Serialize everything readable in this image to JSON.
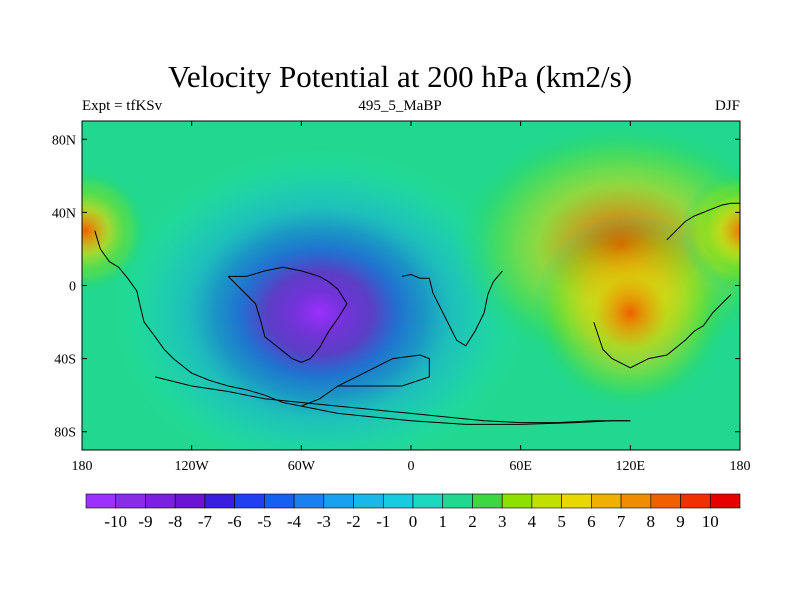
{
  "title": "Velocity Potential at 200 hPa (km2/s)",
  "subtitle_left": "Expt = tfKSv",
  "subtitle_center": "495_5_MaBP",
  "subtitle_right": "DJF",
  "chart_data": {
    "type": "heatmap",
    "projection": "equirectangular",
    "variable": "velocity potential",
    "units": "km2/s",
    "xlim": [
      -180,
      180
    ],
    "ylim": [
      -90,
      90
    ],
    "x_ticks": [
      {
        "value": -180,
        "label": "180"
      },
      {
        "value": -120,
        "label": "120W"
      },
      {
        "value": -60,
        "label": "60W"
      },
      {
        "value": 0,
        "label": "0"
      },
      {
        "value": 60,
        "label": "60E"
      },
      {
        "value": 120,
        "label": "120E"
      },
      {
        "value": 180,
        "label": "180"
      }
    ],
    "y_ticks": [
      {
        "value": 80,
        "label": "80N"
      },
      {
        "value": 40,
        "label": "40N"
      },
      {
        "value": 0,
        "label": "0"
      },
      {
        "value": -40,
        "label": "40S"
      },
      {
        "value": -80,
        "label": "80S"
      }
    ],
    "field_centers": [
      {
        "name": "minimum-center",
        "lon": -50,
        "lat": -15,
        "value": -10.3,
        "sx": 48,
        "sy": 38
      },
      {
        "name": "maximum-center-asia",
        "lon": 115,
        "lat": 22,
        "value": 9.7,
        "sx": 38,
        "sy": 28
      },
      {
        "name": "maximum-center-west-pacific",
        "lon": 120,
        "lat": -15,
        "value": 8.5,
        "sx": 22,
        "sy": 22
      },
      {
        "name": "maximum-center-east-pacific",
        "lon": -178,
        "lat": 30,
        "value": 8.0,
        "sx": 14,
        "sy": 14
      },
      {
        "name": "maximum-center-east-pacific-east",
        "lon": 182,
        "lat": 30,
        "value": 8.0,
        "sx": 14,
        "sy": 14
      }
    ],
    "colorbar": {
      "levels": [
        -10,
        -9,
        -8,
        -7,
        -6,
        -5,
        -4,
        -3,
        -2,
        -1,
        0,
        1,
        2,
        3,
        4,
        5,
        6,
        7,
        8,
        9,
        10
      ],
      "labels": [
        "-10",
        "-9",
        "-8",
        "-7",
        "-6",
        "-5",
        "-4",
        "-3",
        "-2",
        "-1",
        "0",
        "1",
        "2",
        "3",
        "4",
        "5",
        "6",
        "7",
        "8",
        "9",
        "10"
      ],
      "colors": [
        "#9b30ff",
        "#8a2be6",
        "#7b1fe0",
        "#6a14d4",
        "#3a1ee0",
        "#1f3ff0",
        "#1560f0",
        "#1a80f0",
        "#1aa0f0",
        "#18b8ea",
        "#18cce0",
        "#1ad9c0",
        "#22d890",
        "#3cd840",
        "#8ee000",
        "#c2e000",
        "#e8d800",
        "#f0b000",
        "#f08c00",
        "#f06000",
        "#f03000",
        "#e60000"
      ]
    },
    "coastlines": [
      {
        "name": "americas-coastline",
        "points": [
          [
            -173,
            30
          ],
          [
            -170,
            20
          ],
          [
            -165,
            13
          ],
          [
            -160,
            10
          ],
          [
            -155,
            4
          ],
          [
            -150,
            -3
          ],
          [
            -148,
            -12
          ],
          [
            -146,
            -20
          ],
          [
            -140,
            -28
          ],
          [
            -135,
            -35
          ],
          [
            -130,
            -40
          ],
          [
            -125,
            -44
          ],
          [
            -120,
            -48
          ],
          [
            -110,
            -52
          ],
          [
            -100,
            -55
          ],
          [
            -90,
            -57
          ],
          [
            -80,
            -60
          ],
          [
            -70,
            -64
          ]
        ]
      },
      {
        "name": "antarctica-coastline",
        "points": [
          [
            -70,
            -64
          ],
          [
            -60,
            -66
          ],
          [
            -50,
            -68
          ],
          [
            -40,
            -70
          ],
          [
            -20,
            -72
          ],
          [
            0,
            -74
          ],
          [
            30,
            -76
          ],
          [
            60,
            -76
          ],
          [
            90,
            -75
          ],
          [
            110,
            -74
          ],
          [
            120,
            -74
          ]
        ]
      },
      {
        "name": "antarctic-peninsula-coastline",
        "points": [
          [
            -60,
            -66
          ],
          [
            -50,
            -62
          ],
          [
            -40,
            -55
          ],
          [
            -30,
            -50
          ],
          [
            -20,
            -45
          ],
          [
            -10,
            -40
          ],
          [
            5,
            -38
          ],
          [
            10,
            -40
          ],
          [
            10,
            -50
          ],
          [
            -5,
            -55
          ],
          [
            -20,
            -55
          ],
          [
            -40,
            -55
          ]
        ]
      },
      {
        "name": "africa-coastline",
        "points": [
          [
            -5,
            5
          ],
          [
            0,
            6
          ],
          [
            5,
            4
          ],
          [
            10,
            4
          ],
          [
            12,
            -4
          ],
          [
            15,
            -10
          ],
          [
            20,
            -20
          ],
          [
            25,
            -30
          ],
          [
            30,
            -33
          ],
          [
            35,
            -25
          ],
          [
            40,
            -15
          ],
          [
            42,
            -5
          ],
          [
            45,
            2
          ],
          [
            50,
            8
          ]
        ]
      },
      {
        "name": "india-asia-coastline",
        "points": [
          [
            100,
            -20
          ],
          [
            105,
            -35
          ],
          [
            110,
            -40
          ],
          [
            120,
            -45
          ],
          [
            130,
            -40
          ],
          [
            140,
            -38
          ],
          [
            150,
            -30
          ],
          [
            155,
            -25
          ],
          [
            160,
            -22
          ],
          [
            165,
            -15
          ],
          [
            170,
            -10
          ],
          [
            175,
            -5
          ]
        ]
      },
      {
        "name": "east-asia-coastline",
        "points": [
          [
            140,
            25
          ],
          [
            145,
            30
          ],
          [
            150,
            35
          ],
          [
            155,
            38
          ],
          [
            160,
            40
          ],
          [
            165,
            42
          ],
          [
            170,
            44
          ],
          [
            175,
            45
          ],
          [
            180,
            45
          ]
        ]
      },
      {
        "name": "south-america-coastline",
        "points": [
          [
            -100,
            5
          ],
          [
            -95,
            0
          ],
          [
            -90,
            -5
          ],
          [
            -85,
            -10
          ],
          [
            -82,
            -20
          ],
          [
            -80,
            -28
          ],
          [
            -75,
            -32
          ],
          [
            -70,
            -36
          ],
          [
            -65,
            -40
          ],
          [
            -60,
            -42
          ],
          [
            -55,
            -40
          ],
          [
            -50,
            -34
          ],
          [
            -45,
            -25
          ],
          [
            -40,
            -18
          ],
          [
            -35,
            -10
          ],
          [
            -40,
            -2
          ],
          [
            -45,
            2
          ],
          [
            -50,
            5
          ],
          [
            -60,
            8
          ],
          [
            -70,
            10
          ],
          [
            -80,
            8
          ],
          [
            -90,
            5
          ],
          [
            -100,
            5
          ]
        ]
      },
      {
        "name": "southern-ocean-front",
        "points": [
          [
            -140,
            -50
          ],
          [
            -120,
            -55
          ],
          [
            -100,
            -58
          ],
          [
            -80,
            -62
          ],
          [
            -60,
            -64
          ],
          [
            -40,
            -66
          ],
          [
            -20,
            -68
          ],
          [
            0,
            -70
          ],
          [
            20,
            -72
          ],
          [
            40,
            -74
          ],
          [
            60,
            -75
          ],
          [
            80,
            -75
          ],
          [
            100,
            -74
          ],
          [
            110,
            -74
          ],
          [
            120,
            -74
          ]
        ]
      }
    ]
  }
}
